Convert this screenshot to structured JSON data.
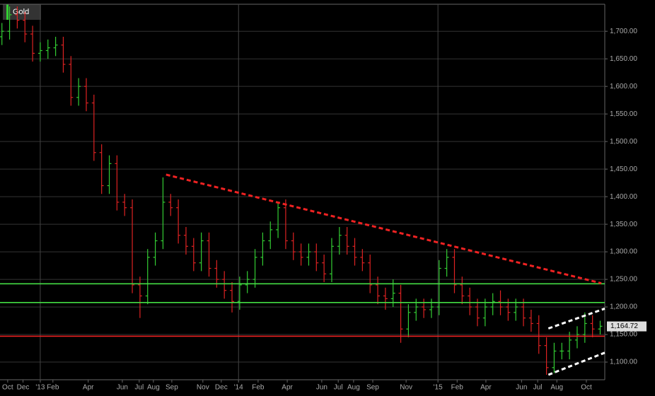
{
  "chart_data": {
    "type": "ohlc",
    "title": "Gold",
    "up_color": "#33cc33",
    "down_color": "#dd2222",
    "x": [
      -10,
      -8,
      -6,
      -4,
      -2,
      0,
      2,
      4,
      6,
      8,
      10,
      12,
      14,
      16,
      18,
      20,
      22,
      24,
      26,
      28,
      30,
      32,
      34,
      36,
      38,
      40,
      42,
      44,
      46,
      48,
      50,
      52,
      54,
      56,
      58,
      60,
      62,
      64,
      66,
      68,
      70,
      72,
      74,
      76,
      78,
      80,
      82,
      84,
      86,
      88,
      90,
      92,
      94,
      96,
      98,
      100,
      102,
      104,
      106,
      108,
      110,
      112,
      114,
      116,
      118,
      120,
      122,
      124,
      126,
      128,
      130,
      132,
      134,
      136,
      138,
      140,
      142,
      144,
      146
    ],
    "open": [
      1690,
      1700,
      1730,
      1720,
      1695,
      1660,
      1665,
      1670,
      1675,
      1640,
      1580,
      1600,
      1570,
      1480,
      1420,
      1460,
      1390,
      1380,
      1240,
      1220,
      1290,
      1320,
      1390,
      1380,
      1330,
      1310,
      1280,
      1320,
      1270,
      1250,
      1230,
      1210,
      1240,
      1250,
      1290,
      1320,
      1340,
      1380,
      1320,
      1300,
      1290,
      1300,
      1280,
      1260,
      1310,
      1330,
      1310,
      1290,
      1280,
      1240,
      1220,
      1215,
      1225,
      1160,
      1190,
      1200,
      1195,
      1200,
      1270,
      1290,
      1240,
      1220,
      1200,
      1180,
      1200,
      1210,
      1200,
      1190,
      1200,
      1180,
      1170,
      1130,
      1090,
      1120,
      1120,
      1140,
      1150,
      1170,
      1160
    ],
    "high": [
      1715,
      1745,
      1745,
      1735,
      1710,
      1680,
      1685,
      1690,
      1690,
      1655,
      1615,
      1615,
      1585,
      1495,
      1475,
      1475,
      1405,
      1395,
      1255,
      1305,
      1335,
      1435,
      1405,
      1395,
      1345,
      1325,
      1335,
      1335,
      1285,
      1265,
      1245,
      1255,
      1265,
      1305,
      1335,
      1355,
      1390,
      1395,
      1335,
      1315,
      1315,
      1315,
      1295,
      1325,
      1345,
      1345,
      1325,
      1305,
      1295,
      1255,
      1235,
      1250,
      1240,
      1205,
      1215,
      1215,
      1215,
      1285,
      1305,
      1305,
      1255,
      1235,
      1215,
      1215,
      1225,
      1230,
      1215,
      1215,
      1215,
      1195,
      1185,
      1145,
      1135,
      1135,
      1155,
      1165,
      1190,
      1185,
      1175
    ],
    "low": [
      1675,
      1685,
      1705,
      1680,
      1645,
      1645,
      1650,
      1655,
      1625,
      1565,
      1565,
      1555,
      1465,
      1405,
      1405,
      1375,
      1365,
      1225,
      1180,
      1205,
      1275,
      1305,
      1365,
      1315,
      1295,
      1265,
      1265,
      1255,
      1235,
      1215,
      1190,
      1195,
      1225,
      1235,
      1275,
      1305,
      1325,
      1305,
      1285,
      1275,
      1275,
      1265,
      1245,
      1245,
      1295,
      1295,
      1275,
      1265,
      1225,
      1205,
      1195,
      1200,
      1135,
      1145,
      1175,
      1180,
      1180,
      1185,
      1255,
      1225,
      1205,
      1185,
      1165,
      1165,
      1185,
      1185,
      1175,
      1175,
      1165,
      1155,
      1115,
      1077,
      1080,
      1105,
      1105,
      1125,
      1135,
      1145,
      1150
    ],
    "close": [
      1700,
      1730,
      1720,
      1695,
      1660,
      1665,
      1670,
      1675,
      1640,
      1580,
      1600,
      1570,
      1480,
      1420,
      1460,
      1390,
      1380,
      1240,
      1220,
      1290,
      1320,
      1390,
      1380,
      1330,
      1310,
      1280,
      1320,
      1270,
      1250,
      1230,
      1210,
      1240,
      1250,
      1290,
      1320,
      1340,
      1380,
      1320,
      1300,
      1290,
      1300,
      1280,
      1260,
      1310,
      1330,
      1310,
      1290,
      1280,
      1240,
      1220,
      1215,
      1225,
      1160,
      1190,
      1200,
      1195,
      1200,
      1270,
      1290,
      1240,
      1220,
      1200,
      1180,
      1200,
      1210,
      1200,
      1190,
      1200,
      1180,
      1170,
      1130,
      1090,
      1120,
      1120,
      1140,
      1150,
      1170,
      1160,
      1165
    ],
    "xlim": [
      -10.5,
      147.2
    ],
    "ylim": [
      1068,
      1749
    ],
    "xticks": [
      {
        "value": -8.5,
        "label": "Oct"
      },
      {
        "value": -4.5,
        "label": "Dec"
      },
      {
        "value": 0,
        "label": "'13"
      },
      {
        "value": 3.3,
        "label": "Feb"
      },
      {
        "value": 12.5,
        "label": "Apr"
      },
      {
        "value": 21.4,
        "label": "Jun"
      },
      {
        "value": 25.8,
        "label": "Jul"
      },
      {
        "value": 29.5,
        "label": "Aug"
      },
      {
        "value": 34.3,
        "label": "Sep"
      },
      {
        "value": 42.4,
        "label": "Nov"
      },
      {
        "value": 47.2,
        "label": "Dec"
      },
      {
        "value": 51.7,
        "label": "'14"
      },
      {
        "value": 56.8,
        "label": "Feb"
      },
      {
        "value": 64.4,
        "label": "Apr"
      },
      {
        "value": 73.4,
        "label": "Jun"
      },
      {
        "value": 77.7,
        "label": "Jul"
      },
      {
        "value": 81.7,
        "label": "Aug"
      },
      {
        "value": 86.7,
        "label": "Sep"
      },
      {
        "value": 95.4,
        "label": "Nov"
      },
      {
        "value": 103.7,
        "label": "'15"
      },
      {
        "value": 108.7,
        "label": "Feb"
      },
      {
        "value": 116.2,
        "label": "Apr"
      },
      {
        "value": 125.5,
        "label": "Jun"
      },
      {
        "value": 129.7,
        "label": "Jul"
      },
      {
        "value": 134.7,
        "label": "Aug"
      },
      {
        "value": 142.4,
        "label": "Oct"
      }
    ],
    "yticks": [
      {
        "value": 1100,
        "label": "1,100.00"
      },
      {
        "value": 1150,
        "label": "1,150.00"
      },
      {
        "value": 1200,
        "label": "1,200.00"
      },
      {
        "value": 1250,
        "label": "1,250.00"
      },
      {
        "value": 1300,
        "label": "1,300.00"
      },
      {
        "value": 1350,
        "label": "1,350.00"
      },
      {
        "value": 1400,
        "label": "1,400.00"
      },
      {
        "value": 1450,
        "label": "1,450.00"
      },
      {
        "value": 1500,
        "label": "1,500.00"
      },
      {
        "value": 1550,
        "label": "1,550.00"
      },
      {
        "value": 1600,
        "label": "1,600.00"
      },
      {
        "value": 1650,
        "label": "1,650.00"
      },
      {
        "value": 1700,
        "label": "1,700.00"
      }
    ],
    "year_lines": [
      0,
      51.7,
      103.7
    ],
    "levels": [
      {
        "value": 1242,
        "color": "#44dd44"
      },
      {
        "value": 1208,
        "color": "#44dd44"
      },
      {
        "value": 1147,
        "color": "#ee2222"
      }
    ],
    "trend_lines": [
      {
        "x": [
          32.8,
          146.3
        ],
        "y": [
          1440,
          1243
        ],
        "color": "#ee2222"
      },
      {
        "x": [
          132.5,
          147.2
        ],
        "y": [
          1161,
          1197
        ],
        "color": "#ffffff"
      },
      {
        "x": [
          132.5,
          147.2
        ],
        "y": [
          1077,
          1117
        ],
        "color": "#ffffff"
      }
    ],
    "last_price": {
      "value": 1164.72,
      "label": "1,164.72"
    },
    "grid": true
  }
}
